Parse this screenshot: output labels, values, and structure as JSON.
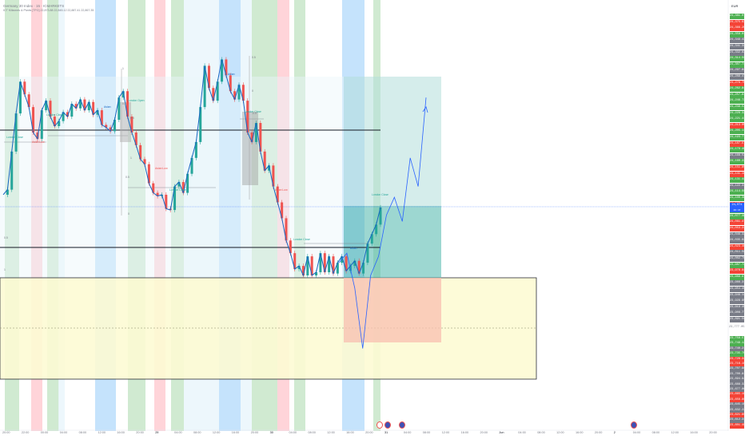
{
  "header": {
    "symbol_line": "Germany 30 Index · 15 · ICMARKETS",
    "indicator_line": "ICT Killzones & Pivots [TFO]  22,873.88  22,845.12  22,887.41  22,867.35",
    "corner_label": "EUR"
  },
  "colors": {
    "up": "#26a69a",
    "down": "#ef5350",
    "line": "#1565c0",
    "projection": "#2962ff",
    "session_green": "#c8e6c9",
    "session_red": "#ffcdd2",
    "session_blue": "#bbdefb",
    "session_pale": "#eaf6fb",
    "zone_yellow": "#fdfbd4",
    "target_green": "#b2dfdb",
    "stop_red": "#f8bfb0"
  },
  "current_price": {
    "value": "24,071",
    "sub": "20:47"
  },
  "price_axis": [
    {
      "text": "24,381.07",
      "color": "#4caf50"
    },
    {
      "text": "24,375.93",
      "color": "#f44336"
    },
    {
      "text": "24,366.29",
      "color": "#f44336"
    },
    {
      "text": "24,358.01",
      "color": "#4caf50"
    },
    {
      "text": "24,349.43",
      "color": "#787b86"
    },
    {
      "text": "24,341.34",
      "color": "#787b86"
    },
    {
      "text": "24,332.82",
      "color": "#787b86"
    },
    {
      "text": "24,314.59",
      "color": "#4caf50"
    },
    {
      "text": "24,307.71",
      "color": "#4caf50"
    },
    {
      "text": "24,297.84",
      "color": "#787b86"
    },
    {
      "text": "24,289.47",
      "color": "#787b86"
    },
    {
      "text": "24,276.75",
      "color": "#f44336"
    },
    {
      "text": "24,262.84",
      "color": "#4caf50"
    },
    {
      "text": "24,257.81",
      "color": "#4caf50"
    },
    {
      "text": "24,246.73",
      "color": "#4caf50"
    },
    {
      "text": "24,239.53",
      "color": "#4caf50"
    },
    {
      "text": "24,228.32",
      "color": "#4caf50"
    },
    {
      "text": "24,221.41",
      "color": "#4caf50"
    },
    {
      "text": "24,213.05",
      "color": "#f44336"
    },
    {
      "text": "24,205.11",
      "color": "#4caf50"
    },
    {
      "text": "24,193.77",
      "color": "#4caf50"
    },
    {
      "text": "24,187.57",
      "color": "#f44336"
    },
    {
      "text": "24,179.49",
      "color": "#4caf50"
    },
    {
      "text": "24,168.53",
      "color": "#787b86"
    },
    {
      "text": "24,160.22",
      "color": "#4caf50"
    },
    {
      "text": "24,151.85",
      "color": "#f44336"
    },
    {
      "text": "24,141.19",
      "color": "#f44336"
    },
    {
      "text": "24,131.44",
      "color": "#4caf50"
    },
    {
      "text": "24,122.31",
      "color": "#787b86"
    },
    {
      "text": "24,114.59",
      "color": "#4caf50"
    },
    {
      "text": "24,100.38",
      "color": "#4caf50"
    },
    {
      "text": "24,095.16",
      "color": "#f44336"
    },
    {
      "text": "24,086.87",
      "color": "#4caf50"
    },
    {
      "text": "24,077.48",
      "color": "#4caf50"
    },
    {
      "text": "24,061.47",
      "color": "#f44336"
    },
    {
      "text": "24,053.24",
      "color": "#f44336"
    },
    {
      "text": "24,046.32",
      "color": "#787b86"
    },
    {
      "text": "24,035.82",
      "color": "#787b86"
    },
    {
      "text": "24,023.46",
      "color": "#f44336"
    },
    {
      "text": "24,011.58",
      "color": "#787b86"
    },
    {
      "text": "24,002.79",
      "color": "#787b86"
    },
    {
      "text": "23,987.73",
      "color": "#4caf50"
    },
    {
      "text": "23,978.84",
      "color": "#f44336"
    },
    {
      "text": "23,969.97",
      "color": "#4caf50"
    },
    {
      "text": "23,966.31",
      "color": "#787b86"
    },
    {
      "text": "23,954.45",
      "color": "#787b86"
    },
    {
      "text": "23,946.14",
      "color": "#787b86"
    },
    {
      "text": "23,929.95",
      "color": "#787b86"
    },
    {
      "text": "23,919.45",
      "color": "#787b86"
    },
    {
      "text": "23,908.77",
      "color": "#787b86"
    },
    {
      "text": "23,891.56",
      "color": "#787b86"
    }
  ],
  "price_axis_lower": [
    {
      "text": "23,758.57",
      "color": "#4caf50"
    },
    {
      "text": "23,749.12",
      "color": "#4caf50"
    },
    {
      "text": "23,740.21",
      "color": "#787b86"
    },
    {
      "text": "23,735.75",
      "color": "#4caf50"
    },
    {
      "text": "23,726.34",
      "color": "#f44336"
    },
    {
      "text": "23,716.19",
      "color": "#f44336"
    },
    {
      "text": "23,707.96",
      "color": "#787b86"
    },
    {
      "text": "23,700.81",
      "color": "#787b86"
    },
    {
      "text": "23,694.94",
      "color": "#787b86"
    },
    {
      "text": "23,688.32",
      "color": "#787b86"
    },
    {
      "text": "23,677.06",
      "color": "#787b86"
    },
    {
      "text": "23,665.19",
      "color": "#f44336"
    },
    {
      "text": "23,656.80",
      "color": "#f44336"
    },
    {
      "text": "23,645.15",
      "color": "#787b86"
    },
    {
      "text": "23,632.22",
      "color": "#787b86"
    },
    {
      "text": "23,621.80",
      "color": "#f44336"
    },
    {
      "text": "23,612.31",
      "color": "#787b86"
    },
    {
      "text": "23,601.40",
      "color": "#f44336"
    }
  ],
  "mid_axis_label": "23,777.05",
  "time_axis": [
    "20:00",
    "22:00",
    "00:00",
    "04:00",
    "08:00",
    "12:00",
    "16:00",
    "20:00",
    "29",
    "04:00",
    "08:00",
    "12:00",
    "16:00",
    "20:00",
    "30",
    "04:00",
    "08:00",
    "12:00",
    "16:00",
    "20:00",
    "31",
    "04:00",
    "08:00",
    "12:00",
    "16:00",
    "20:00",
    "Jun",
    "04:00",
    "08:00",
    "12:00",
    "16:00",
    "20:00",
    "2",
    "04:00",
    "08:00",
    "12:00",
    "16:00",
    "20:00"
  ],
  "annotations": [
    {
      "text": "London Close",
      "color": "#26a69a"
    },
    {
      "text": "Asian Low",
      "color": "#ef5350"
    },
    {
      "text": "London Close",
      "color": "#26a69a"
    },
    {
      "text": "Asian",
      "color": "#1565c0"
    },
    {
      "text": "London Open",
      "color": "#26a69a"
    },
    {
      "text": "Asian Low",
      "color": "#ef5350"
    },
    {
      "text": "London Close",
      "color": "#26a69a"
    },
    {
      "text": "Asian",
      "color": "#1565c0"
    },
    {
      "text": "London Close",
      "color": "#26a69a"
    },
    {
      "text": "Asian Low",
      "color": "#ef5350"
    },
    {
      "text": "London Close",
      "color": "#26a69a"
    },
    {
      "text": "London Close",
      "color": "#26a69a"
    },
    {
      "text": "Asian",
      "color": "#1565c0"
    }
  ],
  "fib_labels": [
    "1",
    "0.5",
    "0.5",
    "1",
    "0.5",
    "0",
    "0.5",
    "0",
    "-0.5",
    "0",
    "0.5",
    "1"
  ],
  "chart_data": {
    "type": "candlestick",
    "price_path": [
      24082,
      24090,
      24150,
      24210,
      24260,
      24240,
      24220,
      24180,
      24170,
      24215,
      24230,
      24205,
      24190,
      24198,
      24212,
      24205,
      24225,
      24218,
      24232,
      24215,
      24228,
      24208,
      24215,
      24192,
      24188,
      24182,
      24200,
      24235,
      24245,
      24205,
      24180,
      24160,
      24138,
      24130,
      24100,
      24085,
      24080,
      24082,
      24060,
      24058,
      24095,
      24102,
      24085,
      24115,
      24140,
      24165,
      24220,
      24285,
      24250,
      24230,
      24260,
      24295,
      24270,
      24245,
      24232,
      24255,
      24230,
      24180,
      24165,
      24195,
      24150,
      24120,
      24128,
      24095,
      24070,
      24045,
      24010,
      23990,
      23965,
      23970,
      23955,
      23985,
      23955,
      23960,
      23990,
      23960,
      23985,
      23958,
      23975,
      23985,
      23962,
      23970,
      23978,
      23958,
      23975,
      24005,
      24020,
      24035,
      24062
    ],
    "projection_path": [
      23975,
      23990,
      23935,
      23840,
      23955,
      23985,
      24050,
      24078,
      24040,
      24140,
      24095,
      24235
    ]
  }
}
